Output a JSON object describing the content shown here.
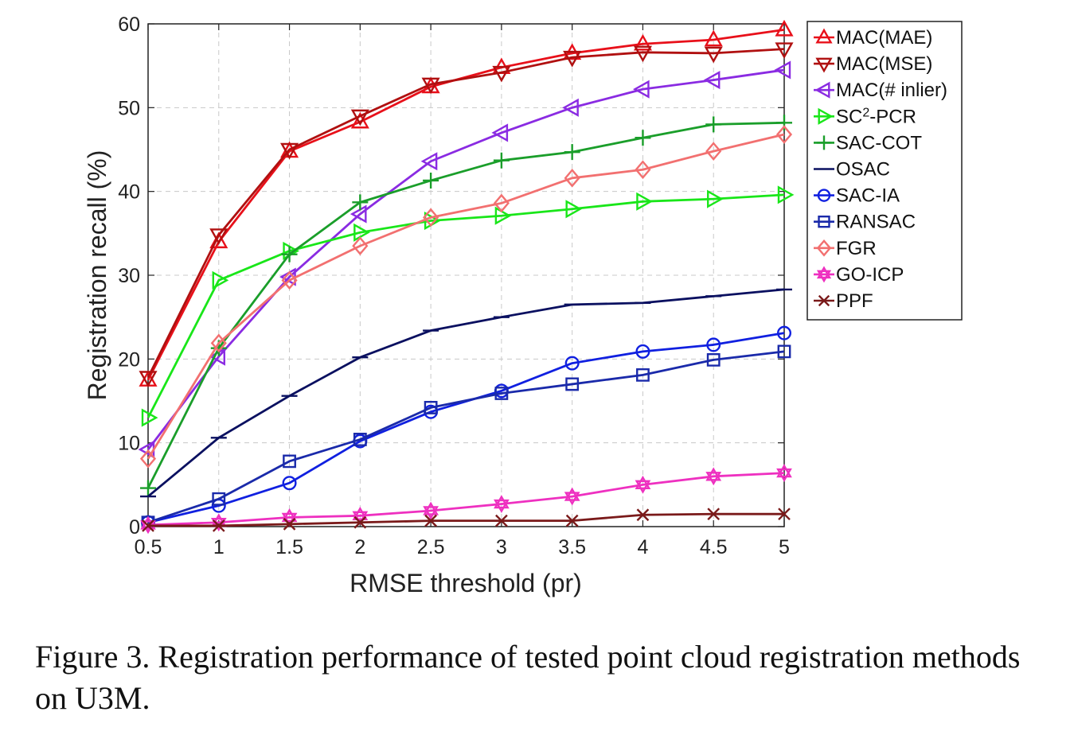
{
  "caption": "Figure 3. Registration performance of tested point cloud registration methods on U3M.",
  "chart_data": {
    "type": "line",
    "xlabel": "RMSE threshold (pr)",
    "ylabel": "Registration recall (%)",
    "xlim": [
      0.5,
      5
    ],
    "ylim": [
      0,
      60
    ],
    "x": [
      0.5,
      1,
      1.5,
      2,
      2.5,
      3,
      3.5,
      4,
      4.5,
      5
    ],
    "x_tick_labels": [
      "0.5",
      "1",
      "1.5",
      "2",
      "2.5",
      "3",
      "3.5",
      "4",
      "4.5",
      "5"
    ],
    "y_tick_labels": [
      "0",
      "10",
      "20",
      "30",
      "40",
      "50",
      "60"
    ],
    "grid": true,
    "legend_position": "outside-right-top",
    "series": [
      {
        "name": "MAC(MAE)",
        "color": "#e8101a",
        "marker": "triangle-up",
        "values": [
          17.5,
          34,
          44.8,
          48.3,
          52.5,
          54.8,
          56.5,
          57.6,
          58.1,
          59.3
        ]
      },
      {
        "name": "MAC(MSE)",
        "color": "#b01010",
        "marker": "triangle-down",
        "values": [
          17.8,
          34.8,
          45,
          49,
          52.8,
          54.2,
          56,
          56.6,
          56.5,
          57
        ]
      },
      {
        "name": "MAC(# inlier)",
        "color": "#8a2be2",
        "marker": "triangle-left",
        "values": [
          9.2,
          20.3,
          29.8,
          37.3,
          43.6,
          47,
          50,
          52.2,
          53.3,
          54.5
        ]
      },
      {
        "name": "SC",
        "name_sup": "2",
        "name_suffix": "-PCR",
        "color": "#19e619",
        "marker": "triangle-right",
        "values": [
          13,
          29.4,
          32.9,
          35.1,
          36.5,
          37.1,
          37.9,
          38.8,
          39.1,
          39.6
        ]
      },
      {
        "name": "SAC-COT",
        "color": "#1a9e2a",
        "marker": "plus",
        "values": [
          4.6,
          21.3,
          32.5,
          38.7,
          41.3,
          43.7,
          44.7,
          46.4,
          48,
          48.2
        ]
      },
      {
        "name": "OSAC",
        "color": "#0a1060",
        "marker": "none",
        "values": [
          3.6,
          10.6,
          15.6,
          20.2,
          23.4,
          25,
          26.5,
          26.7,
          27.5,
          28.3
        ]
      },
      {
        "name": "SAC-IA",
        "color": "#1020e0",
        "marker": "circle",
        "values": [
          0.5,
          2.5,
          5.2,
          10.2,
          13.7,
          16.2,
          19.5,
          20.9,
          21.7,
          23.1
        ]
      },
      {
        "name": "RANSAC",
        "color": "#1a2aaa",
        "marker": "square",
        "values": [
          0.5,
          3.3,
          7.8,
          10.4,
          14.2,
          15.9,
          17,
          18.1,
          19.9,
          20.9
        ]
      },
      {
        "name": "FGR",
        "color": "#f27070",
        "marker": "diamond",
        "values": [
          8.1,
          21.9,
          29.4,
          33.5,
          36.9,
          38.6,
          41.6,
          42.6,
          44.8,
          46.8
        ]
      },
      {
        "name": "GO-ICP",
        "color": "#ee30c0",
        "marker": "hexagram",
        "values": [
          0.2,
          0.5,
          1.1,
          1.3,
          1.9,
          2.7,
          3.6,
          5,
          6,
          6.4
        ]
      },
      {
        "name": "PPF",
        "color": "#7a1a1a",
        "marker": "x",
        "values": [
          0.1,
          0.1,
          0.3,
          0.5,
          0.7,
          0.7,
          0.7,
          1.4,
          1.5,
          1.5
        ]
      }
    ]
  }
}
